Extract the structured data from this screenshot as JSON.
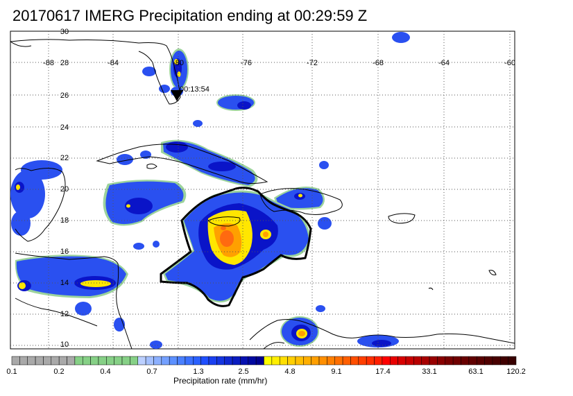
{
  "title": "20170617 IMERG Precipitation ending at 00:29:59 Z",
  "marker_label": "00:13:54",
  "lon_labels": [
    "-88",
    "-84",
    "-80",
    "-76",
    "-72",
    "-68",
    "-64",
    "-60"
  ],
  "lat_labels": [
    "30",
    "28",
    "26",
    "24",
    "22",
    "20",
    "18",
    "16",
    "14",
    "12",
    "10"
  ],
  "colorbar": {
    "title": "Precipitation rate (mm/hr)",
    "tick_labels": [
      "0.1",
      "0.2",
      "0.4",
      "0.7",
      "1.3",
      "2.5",
      "4.8",
      "9.1",
      "17.4",
      "33.1",
      "63.1",
      "120.2"
    ],
    "colors": [
      "#a9a9a9",
      "#a9a9a9",
      "#a9a9a9",
      "#a9a9a9",
      "#a9a9a9",
      "#a9a9a9",
      "#a9a9a9",
      "#a9a9a9",
      "#86d086",
      "#86d086",
      "#86d086",
      "#86d086",
      "#86d086",
      "#86d086",
      "#86d086",
      "#86d086",
      "#bcd0ff",
      "#a4c0ff",
      "#8cb0ff",
      "#74a0ff",
      "#5c90ff",
      "#4a80ff",
      "#3a70ff",
      "#2a60ff",
      "#1f4fff",
      "#1a40f0",
      "#1535e0",
      "#1028d0",
      "#0a1cc0",
      "#0510b0",
      "#0008a0",
      "#000090",
      "#ffff00",
      "#ffef00",
      "#ffdf00",
      "#ffcf00",
      "#ffbf00",
      "#ffaf00",
      "#ff9f00",
      "#ff8f00",
      "#ff7f00",
      "#ff6f00",
      "#ff5f00",
      "#ff4f00",
      "#ff3f00",
      "#ff2f00",
      "#ff1f00",
      "#ff0000",
      "#e80000",
      "#d80000",
      "#c80000",
      "#b80000",
      "#a80000",
      "#980000",
      "#880000",
      "#780000",
      "#700000",
      "#680000",
      "#600000",
      "#580000",
      "#500000",
      "#480000",
      "#400000",
      "#380000"
    ]
  },
  "colors": {
    "light_blue": "#9fb8ff",
    "mid_blue": "#2a50f0",
    "dark_blue": "#0a14c8",
    "yellow": "#ffe600",
    "orange": "#ffa000",
    "red_orange": "#ff6a10",
    "green_edge": "#9cd39c"
  }
}
